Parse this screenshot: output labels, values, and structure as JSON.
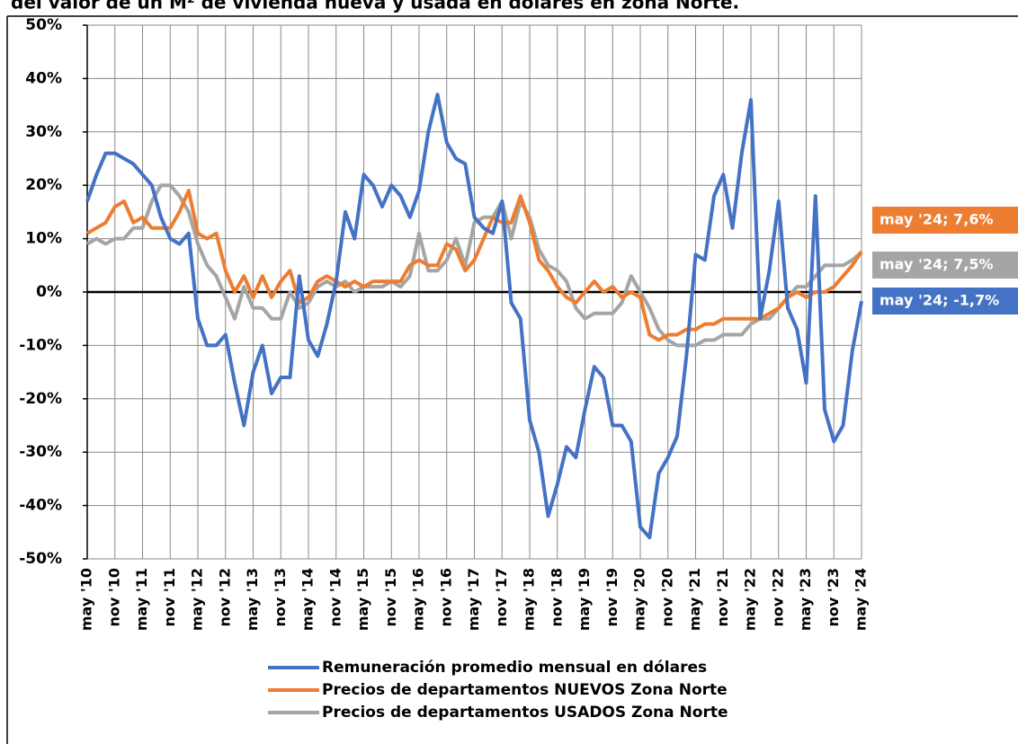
{
  "chart_data": {
    "type": "line",
    "title": "del valor de un M² de vivienda nueva y usada en dólares en zona Norte.",
    "categories": [
      "may '10",
      null,
      null,
      "nov '10",
      null,
      null,
      "may '11",
      null,
      null,
      "nov '11",
      null,
      null,
      "may '12",
      null,
      null,
      "nov '12",
      null,
      null,
      "may '13",
      null,
      null,
      "nov '13",
      null,
      null,
      "may '14",
      null,
      null,
      "nov '14",
      null,
      null,
      "may '15",
      null,
      null,
      "nov '15",
      null,
      null,
      "may '16",
      null,
      null,
      "nov '16",
      null,
      null,
      "may '17",
      null,
      null,
      "nov '17",
      null,
      null,
      "may '18",
      null,
      null,
      "nov '18",
      null,
      null,
      "may '19",
      null,
      null,
      "nov '19",
      null,
      null,
      "may '20",
      null,
      null,
      "nov '20",
      null,
      null,
      "may '21",
      null,
      null,
      "nov '21",
      null,
      null,
      "may '22",
      null,
      null,
      "nov '22",
      null,
      null,
      "may '23",
      null,
      null,
      "nov '23",
      null,
      null,
      "may '24"
    ],
    "series": [
      {
        "name": "Remuneración promedio mensual en dólares",
        "color": "#4472c4",
        "end_label": "may '24; -1,7%",
        "values": [
          17,
          22,
          26,
          26,
          25,
          24,
          22,
          20,
          14,
          10,
          9,
          11,
          -5,
          -10,
          -10,
          -8,
          -17,
          -25,
          -15,
          -10,
          -19,
          -16,
          -16,
          3,
          -9,
          -12,
          -6,
          2,
          15,
          10,
          22,
          20,
          16,
          20,
          18,
          14,
          19,
          30,
          37,
          28,
          25,
          24,
          14,
          12,
          11,
          17,
          -2,
          -5,
          -24,
          -30,
          -42,
          -36,
          -29,
          -31,
          -22,
          -14,
          -16,
          -25,
          -25,
          -28,
          -44,
          -46,
          -34,
          -31,
          -27,
          -12,
          7,
          6,
          18,
          22,
          12,
          26,
          36,
          -5,
          4,
          17,
          -3,
          -7,
          -17,
          18,
          -22,
          -28,
          -25,
          -11,
          -1.7
        ]
      },
      {
        "name": "Precios de departamentos NUEVOS Zona Norte",
        "color": "#ed7d31",
        "end_label": "may '24; 7,6%",
        "values": [
          11,
          12,
          13,
          16,
          17,
          13,
          14,
          12,
          12,
          12,
          15,
          19,
          11,
          10,
          11,
          4,
          0,
          3,
          -1,
          3,
          -1,
          2,
          4,
          -2,
          -1,
          2,
          3,
          2,
          1,
          2,
          1,
          2,
          2,
          2,
          2,
          5,
          6,
          5,
          5,
          9,
          8,
          4,
          6,
          10,
          14,
          13,
          13,
          18,
          13,
          6,
          4,
          1,
          -1,
          -2,
          0,
          2,
          0,
          1,
          -1,
          0,
          -1,
          -8,
          -9,
          -8,
          -8,
          -7,
          -7,
          -6,
          -6,
          -5,
          -5,
          -5,
          -5,
          -5,
          -4,
          -3,
          -1,
          0,
          -1,
          0,
          0,
          1,
          3,
          5,
          7.6
        ]
      },
      {
        "name": "Precios de departamentos USADOS Zona Norte",
        "color": "#a5a5a5",
        "end_label": "may '24; 7,5%",
        "values": [
          9,
          10,
          9,
          10,
          10,
          12,
          12,
          17,
          20,
          20,
          18,
          15,
          9,
          5,
          3,
          -1,
          -5,
          1,
          -3,
          -3,
          -5,
          -5,
          0,
          -3,
          -2,
          1,
          2,
          1,
          2,
          0,
          1,
          1,
          1,
          2,
          1,
          3,
          11,
          4,
          4,
          6,
          10,
          5,
          13,
          14,
          14,
          17,
          10,
          17,
          14,
          8,
          5,
          4,
          2,
          -3,
          -5,
          -4,
          -4,
          -4,
          -2,
          3,
          0,
          -3,
          -7,
          -9,
          -10,
          -10,
          -10,
          -9,
          -9,
          -8,
          -8,
          -8,
          -6,
          -5,
          -5,
          -3,
          -1,
          1,
          1,
          3,
          5,
          5,
          5,
          6,
          7.5
        ]
      }
    ],
    "ylim": [
      -50,
      50
    ],
    "yticks": [
      {
        "value": -50,
        "label": "-50%"
      },
      {
        "value": -40,
        "label": "-40%"
      },
      {
        "value": -30,
        "label": "-30%"
      },
      {
        "value": -20,
        "label": "-20%"
      },
      {
        "value": -10,
        "label": "-10%"
      },
      {
        "value": 0,
        "label": "0%"
      },
      {
        "value": 10,
        "label": "10%"
      },
      {
        "value": 20,
        "label": "20%"
      },
      {
        "value": 30,
        "label": "30%"
      },
      {
        "value": 40,
        "label": "40%"
      },
      {
        "value": 50,
        "label": "50%"
      }
    ],
    "grid": true
  }
}
